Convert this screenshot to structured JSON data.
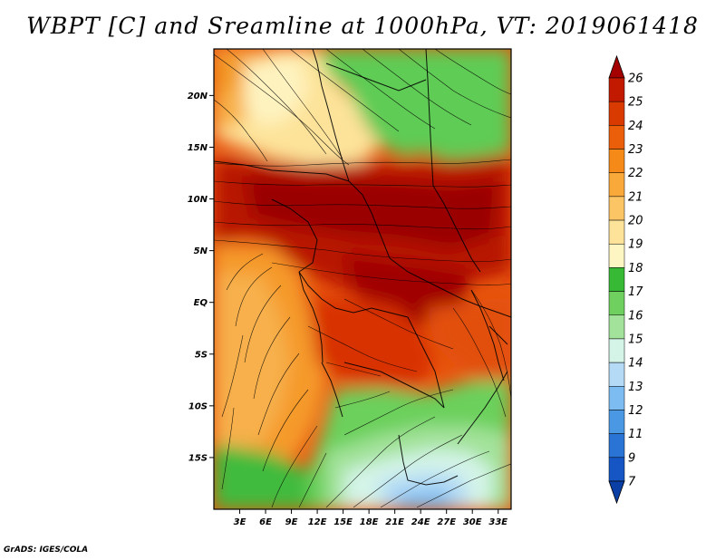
{
  "title": "WBPT [C] and Sreamline at 1000hPa, VT: 2019061418",
  "footer": "GrADS: IGES/COLA",
  "map": {
    "lat_labels": [
      "20N",
      "15N",
      "10N",
      "5N",
      "EQ",
      "5S",
      "10S",
      "15S"
    ],
    "lon_labels": [
      "3E",
      "6E",
      "9E",
      "12E",
      "15E",
      "18E",
      "21E",
      "24E",
      "27E",
      "30E",
      "33E"
    ],
    "lon_range": [
      0,
      34.5
    ],
    "lat_range": [
      -20,
      24.5
    ]
  },
  "colorbar": {
    "labels": [
      "26",
      "25",
      "24",
      "23",
      "22",
      "21",
      "20",
      "19",
      "18",
      "17",
      "16",
      "15",
      "14",
      "13",
      "12",
      "11",
      "9",
      "7"
    ],
    "colors": [
      "#a50000",
      "#c11a00",
      "#d93a00",
      "#ec5f0a",
      "#f68a18",
      "#f9a83a",
      "#fbc566",
      "#fde39a",
      "#fef6c2",
      "#37b935",
      "#6fd05f",
      "#a3e29a",
      "#d4f4e8",
      "#b4daf5",
      "#7cbcf0",
      "#4a98e4",
      "#2a74d6",
      "#1556c4",
      "#0a3fa6"
    ]
  }
}
